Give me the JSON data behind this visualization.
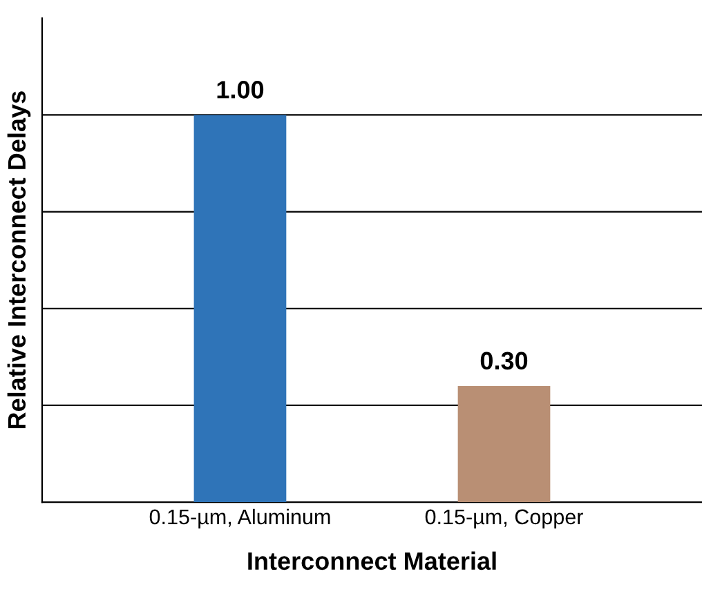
{
  "chart_data": {
    "type": "bar",
    "xlabel": "Interconnect Material",
    "ylabel": "Relative Interconnect Delays",
    "categories": [
      "0.15-µm, Aluminum",
      "0.15-µm, Copper"
    ],
    "values": [
      1.0,
      0.3
    ],
    "colors": [
      "#2f74b8",
      "#b98f74"
    ],
    "value_labels": [
      "1.00",
      "0.30"
    ],
    "ylim": [
      0,
      1.25
    ],
    "yticks": [
      {
        "value": 0.25,
        "label": null
      },
      {
        "value": 0.5,
        "label": null
      },
      {
        "value": 0.75,
        "label": null
      },
      {
        "value": 1.0,
        "label": null
      }
    ],
    "grid": "y",
    "tick_labels": "x"
  }
}
